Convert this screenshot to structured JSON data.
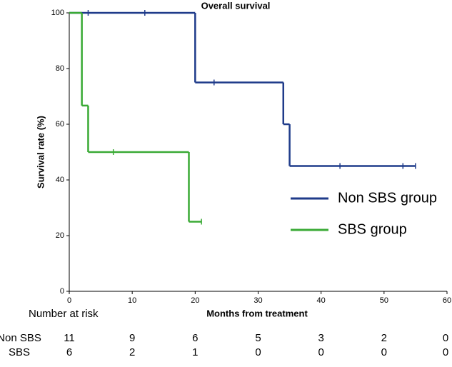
{
  "chart_data": {
    "type": "step",
    "title": "Overall survival",
    "x_label": "Months from treatment",
    "y_label": "Survival rate (%)",
    "xlim": [
      0,
      60
    ],
    "xticks": [
      0,
      10,
      20,
      30,
      40,
      50,
      60
    ],
    "ylim": [
      0,
      100
    ],
    "yticks": [
      0,
      20,
      40,
      60,
      80,
      100
    ],
    "grid": false,
    "series": [
      {
        "name": "Non SBS group",
        "color": "#1f3b8a",
        "x": [
          0,
          20,
          34,
          35,
          55
        ],
        "values": [
          100,
          75,
          60,
          45,
          45
        ],
        "censored_x": [
          3,
          12,
          23,
          43,
          53,
          55
        ],
        "censored_values": [
          100,
          100,
          75,
          45,
          45,
          45
        ]
      },
      {
        "name": "SBS group",
        "color": "#3aaa35",
        "x": [
          0,
          2,
          3,
          19,
          21
        ],
        "values": [
          100,
          66.7,
          50,
          25,
          25
        ],
        "censored_x": [
          7,
          21
        ],
        "censored_values": [
          50,
          25
        ]
      }
    ],
    "risk_table": {
      "title": "Number at risk",
      "rows": [
        {
          "label": "Non SBS",
          "values": [
            11,
            9,
            6,
            5,
            3,
            2,
            0
          ]
        },
        {
          "label": "SBS",
          "values": [
            6,
            2,
            1,
            0,
            0,
            0,
            0
          ]
        }
      ]
    }
  }
}
